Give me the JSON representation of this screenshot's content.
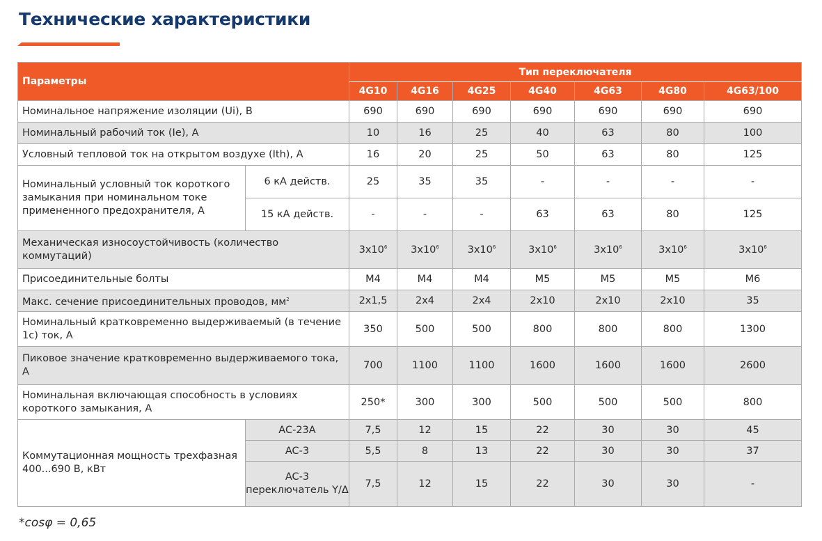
{
  "title": "Технические характеристики",
  "colors": {
    "accent": "#f05a28",
    "title": "#163a6d",
    "shade": "#e3e3e3"
  },
  "header": {
    "params_label": "Параметры",
    "type_label": "Тип переключателя",
    "models": [
      "4G10",
      "4G16",
      "4G25",
      "4G40",
      "4G63",
      "4G80",
      "4G63/100"
    ]
  },
  "rows": {
    "ui": {
      "label": "Номинальное напряжение изоляции (Ui), В",
      "values": [
        "690",
        "690",
        "690",
        "690",
        "690",
        "690",
        "690"
      ]
    },
    "ie": {
      "label": "Номинальный рабочий ток (Ie), А",
      "values": [
        "10",
        "16",
        "25",
        "40",
        "63",
        "80",
        "100"
      ]
    },
    "ith": {
      "label": "Условный тепловой ток на открытом воздухе (Ith), А",
      "values": [
        "16",
        "20",
        "25",
        "50",
        "63",
        "80",
        "125"
      ]
    },
    "short_circuit": {
      "label": "Номинальный условный ток короткого замыкания при номинальном токе примененного предохранителя, А",
      "sub": [
        {
          "label": "6 кА действ.",
          "values": [
            "25",
            "35",
            "35",
            "-",
            "-",
            "-",
            "-"
          ]
        },
        {
          "label": "15 кА действ.",
          "values": [
            "-",
            "-",
            "-",
            "63",
            "63",
            "80",
            "125"
          ]
        }
      ]
    },
    "mech": {
      "label": "Механическая износоустойчивость (количество коммутаций)",
      "value_base": "3x10",
      "value_exp": "6"
    },
    "bolts": {
      "label": "Присоединительные болты",
      "values": [
        "M4",
        "M4",
        "M4",
        "M5",
        "M5",
        "M5",
        "M6"
      ]
    },
    "wire": {
      "label": "Макс. сечение присоединительных проводов, мм",
      "label_sup": "2",
      "values": [
        "2x1,5",
        "2x4",
        "2x4",
        "2x10",
        "2x10",
        "2x10",
        "35"
      ]
    },
    "short_time": {
      "label": "Номинальный кратковременно выдерживаемый (в течение 1с) ток, А",
      "values": [
        "350",
        "500",
        "500",
        "800",
        "800",
        "800",
        "1300"
      ]
    },
    "peak": {
      "label": "Пиковое значение кратковременно выдерживаемого тока, А",
      "values": [
        "700",
        "1100",
        "1100",
        "1600",
        "1600",
        "1600",
        "2600"
      ]
    },
    "making": {
      "label": "Номинальная включающая способность в условиях короткого замыкания, А",
      "values": [
        "250*",
        "300",
        "300",
        "500",
        "500",
        "500",
        "800"
      ]
    },
    "power": {
      "label": "Коммутационная мощность трехфазная 400...690 В, кВт",
      "sub": [
        {
          "label": "AC-23A",
          "values": [
            "7,5",
            "12",
            "15",
            "22",
            "30",
            "30",
            "45"
          ]
        },
        {
          "label": "AC-3",
          "values": [
            "5,5",
            "8",
            "13",
            "22",
            "30",
            "30",
            "37"
          ]
        },
        {
          "label": "AC-3 переключатель Y/Δ",
          "values": [
            "7,5",
            "12",
            "15",
            "22",
            "30",
            "30",
            "-"
          ]
        }
      ]
    }
  },
  "footnote": "*cosφ = 0,65"
}
